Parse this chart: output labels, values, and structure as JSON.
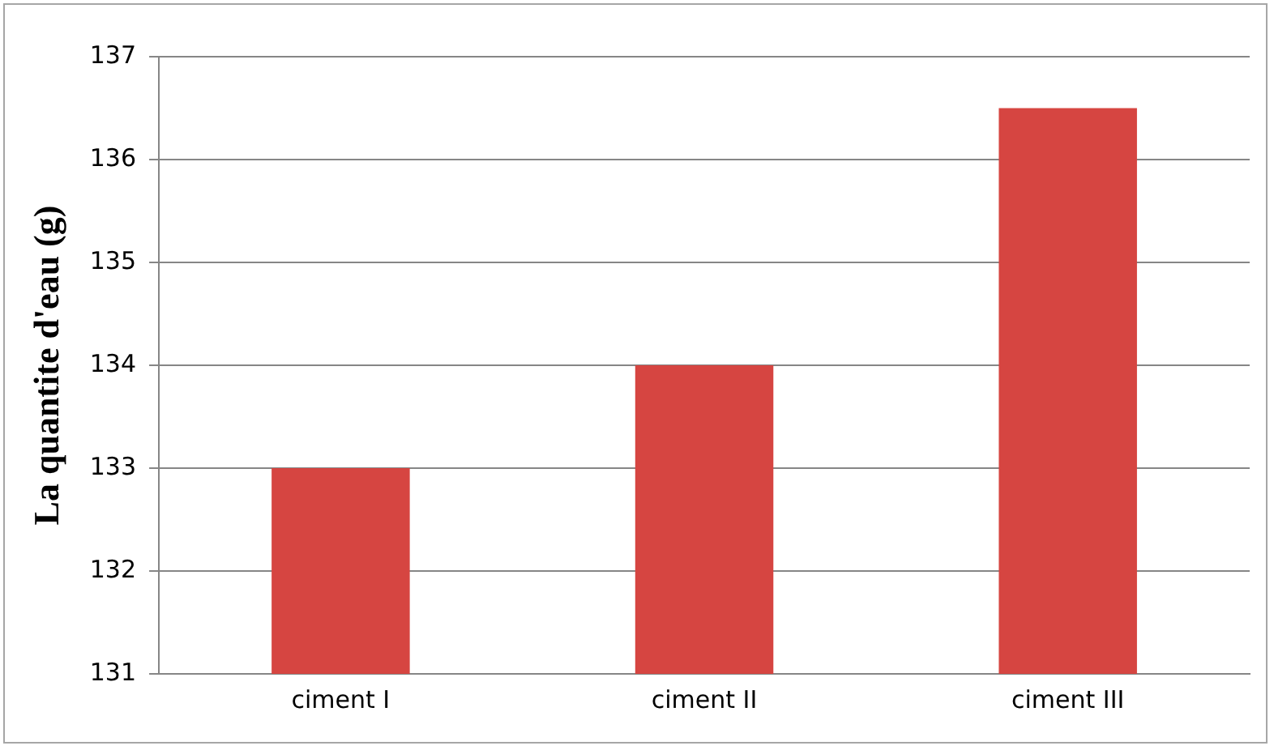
{
  "chart_data": {
    "type": "bar",
    "ylabel": "La quantite d'eau (g)",
    "categories": [
      "ciment I",
      "ciment II",
      "ciment III"
    ],
    "values": [
      133,
      134,
      136.5
    ],
    "color": "#d64541",
    "ylim": [
      131,
      137
    ],
    "yticks": [
      131,
      132,
      133,
      134,
      135,
      136,
      137
    ],
    "grid": "y"
  }
}
